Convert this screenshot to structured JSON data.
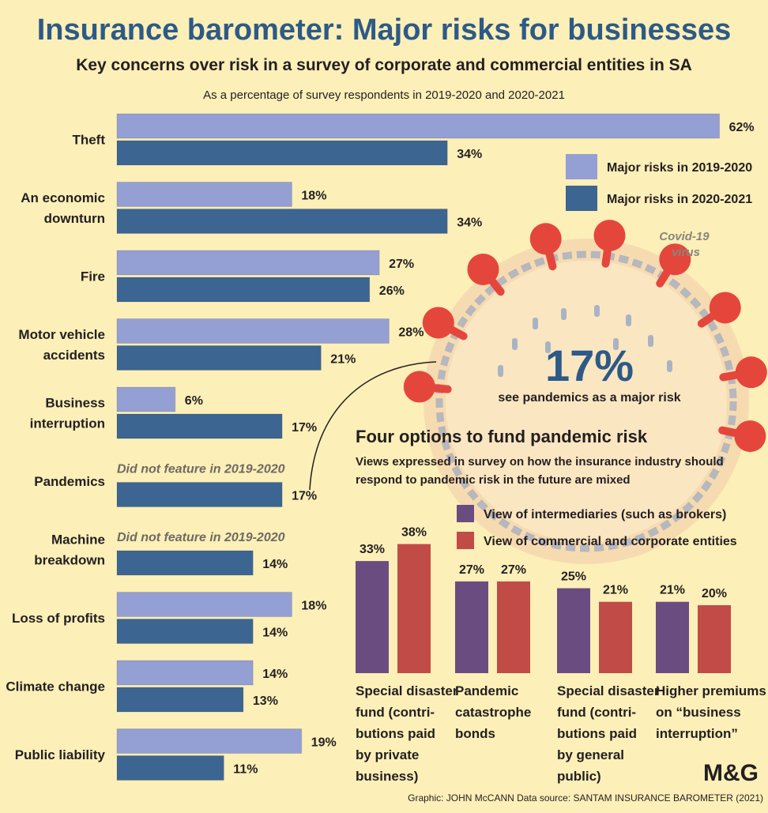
{
  "title": "Insurance barometer: Major risks for businesses",
  "subtitle": "Key concerns over risk in a survey of corporate and commercial entities in SA",
  "caption": "As a percentage of survey respondents in 2019-2020 and 2020-2021",
  "colors": {
    "series_2019_2020": "#949fd4",
    "series_2020_2021": "#3c6591",
    "intermediaries": "#6b4c80",
    "commercial": "#c14c47",
    "title": "#2d5a87",
    "background": "#fcefb8",
    "virus_spike": "#e5463c"
  },
  "not_featured_note": "Did not feature in 2019-2020",
  "virus": {
    "label": "Covid-19 virus",
    "stat": "17%",
    "stat_text": "see pandemics as a major risk"
  },
  "fund": {
    "title": "Four options to fund pandemic risk",
    "desc_line1": "Views expressed in survey on how the insurance industry should",
    "desc_line2": "respond to pandemic risk in the future are mixed"
  },
  "credit": "Graphic: JOHN McCANN  Data source: SANTAM INSURANCE BAROMETER (2021)",
  "logo_text": "M&G",
  "chart_data": [
    {
      "type": "bar",
      "orientation": "horizontal",
      "categories": [
        [
          "Theft"
        ],
        [
          "An economic",
          "downturn"
        ],
        [
          "Fire"
        ],
        [
          "Motor vehicle",
          "accidents"
        ],
        [
          "Business",
          "interruption"
        ],
        [
          "Pandemics"
        ],
        [
          "Machine",
          "breakdown"
        ],
        [
          "Loss of profits"
        ],
        [
          "Climate change"
        ],
        [
          "Public liability"
        ]
      ],
      "series": [
        {
          "name": "Major risks in 2019-2020",
          "values": [
            62,
            18,
            27,
            28,
            6,
            null,
            null,
            18,
            14,
            19
          ]
        },
        {
          "name": "Major risks in 2020-2021",
          "values": [
            34,
            34,
            26,
            21,
            17,
            17,
            14,
            14,
            13,
            11
          ]
        }
      ],
      "unit": "%",
      "legend_position": "top-right"
    },
    {
      "type": "bar",
      "orientation": "vertical",
      "categories": [
        [
          "Special disaster",
          "fund (contri-",
          "butions paid",
          "by private",
          "business)"
        ],
        [
          "Pandemic",
          "catastrophe",
          "bonds"
        ],
        [
          "Special disaster",
          "fund (contri-",
          "butions paid",
          "by general",
          "public)"
        ],
        [
          "Higher premiums",
          "on “business",
          "interruption”"
        ]
      ],
      "series": [
        {
          "name": "View of intermediaries (such as brokers)",
          "values": [
            33,
            27,
            25,
            21
          ]
        },
        {
          "name": "View of commercial and corporate entities",
          "values": [
            38,
            27,
            21,
            20
          ]
        }
      ],
      "unit": "%",
      "legend_position": "top"
    }
  ]
}
